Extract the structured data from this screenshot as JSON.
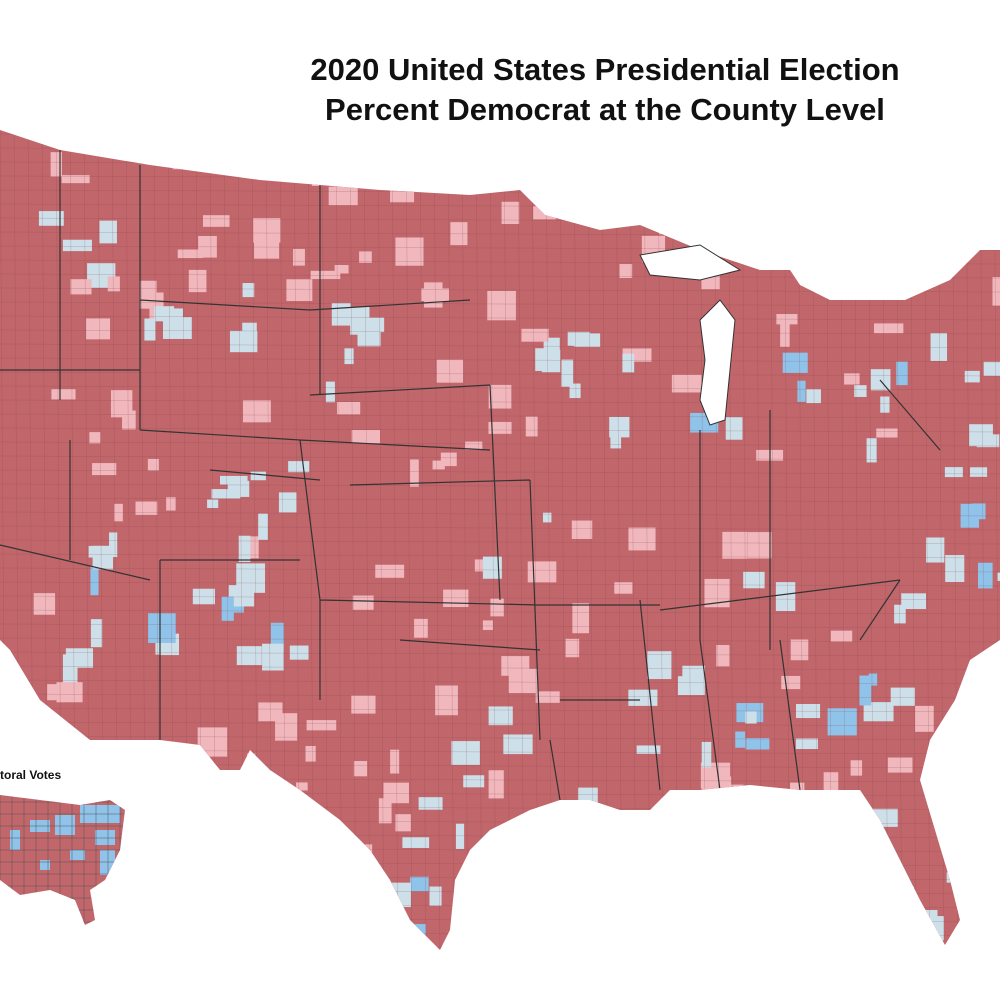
{
  "title": {
    "line1": "2020 United States Presidential Election",
    "line2": "Percent Democrat at the County Level"
  },
  "inset": {
    "label": "toral Votes"
  },
  "colors": {
    "strong_rep": "#c1666b",
    "lean_rep": "#f0b7bd",
    "lean_dem": "#cde0ea",
    "strong_dem": "#8fc3ea",
    "state_border": "#333333",
    "county_border": "#8a4a4e"
  }
}
